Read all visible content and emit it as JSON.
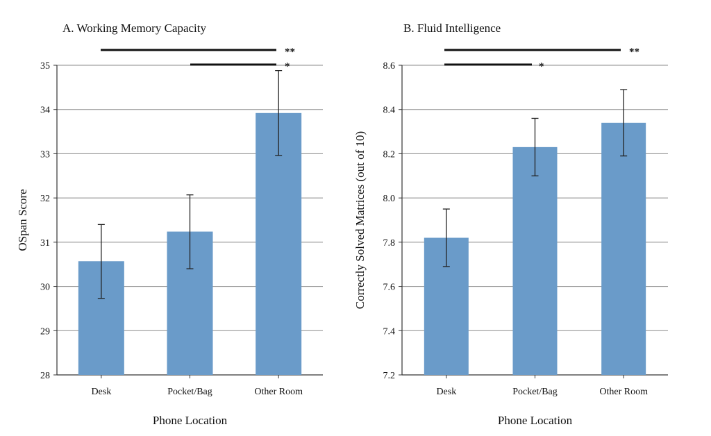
{
  "chart_data": [
    {
      "type": "bar",
      "title": "A. Working Memory Capacity",
      "xlabel": "Phone Location",
      "ylabel": "OSpan Score",
      "categories": [
        "Desk",
        "Pocket/Bag",
        "Other Room"
      ],
      "values": [
        30.57,
        31.24,
        33.92
      ],
      "error_low": [
        29.73,
        30.4,
        32.96
      ],
      "error_high": [
        31.4,
        32.07,
        34.88
      ],
      "ylim": [
        28,
        35
      ],
      "yticks": [
        28,
        29,
        30,
        31,
        32,
        33,
        34,
        35
      ],
      "ytick_labels": [
        "28",
        "29",
        "30",
        "31",
        "32",
        "33",
        "34",
        "35"
      ],
      "grid": true,
      "bar_color": "#6a9bc9",
      "significance": [
        {
          "from": 0,
          "to": 2,
          "label": "**"
        },
        {
          "from": 1,
          "to": 2,
          "label": "*"
        }
      ]
    },
    {
      "type": "bar",
      "title": "B. Fluid Intelligence",
      "xlabel": "Phone Location",
      "ylabel": "Correctly Solved Matrices (out of 10)",
      "categories": [
        "Desk",
        "Pocket/Bag",
        "Other Room"
      ],
      "values": [
        7.82,
        8.23,
        8.34
      ],
      "error_low": [
        7.69,
        8.1,
        8.19
      ],
      "error_high": [
        7.95,
        8.36,
        8.49
      ],
      "ylim": [
        7.2,
        8.6
      ],
      "yticks": [
        7.2,
        7.4,
        7.6,
        7.8,
        8.0,
        8.2,
        8.4,
        8.6
      ],
      "ytick_labels": [
        "7.2",
        "7.4",
        "7.6",
        "7.8",
        "8.0",
        "8.2",
        "8.4",
        "8.6"
      ],
      "grid": true,
      "bar_color": "#6a9bc9",
      "significance": [
        {
          "from": 0,
          "to": 2,
          "label": "**"
        },
        {
          "from": 0,
          "to": 1,
          "label": "*"
        }
      ]
    }
  ]
}
